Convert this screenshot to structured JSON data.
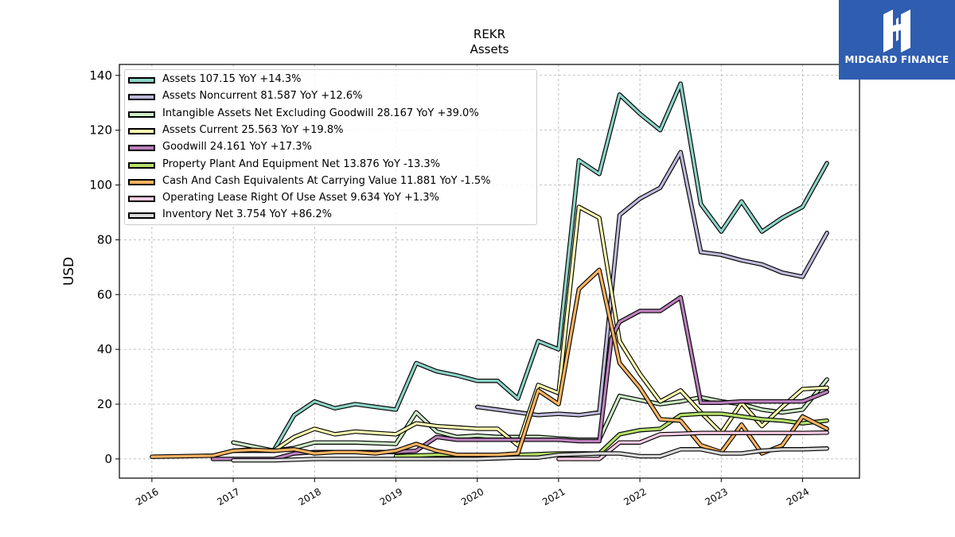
{
  "logo": {
    "text": "MIDGARD FINANCE",
    "color": "#2f5db0"
  },
  "chart_data": {
    "type": "line",
    "title": "REKR",
    "subtitle": "Assets",
    "xlabel": "",
    "ylabel": "USD",
    "x_range": [
      2015.6,
      2024.7
    ],
    "ylim": [
      -7,
      144
    ],
    "y_ticks": [
      0,
      20,
      40,
      60,
      80,
      100,
      120,
      140
    ],
    "x_tick_labels": [
      "2016",
      "2017",
      "2018",
      "2019",
      "2020",
      "2021",
      "2022",
      "2023",
      "2024"
    ],
    "grid": true,
    "legend_position": "top-left",
    "series": [
      {
        "name": "Assets  107.15 YoY +14.3%",
        "color": "#8dd3c7",
        "x": [
          2017.0,
          2017.25,
          2017.5,
          2017.75,
          2018.0,
          2018.25,
          2018.5,
          2018.75,
          2019.0,
          2019.25,
          2019.5,
          2019.75,
          2020.0,
          2020.25,
          2020.5,
          2020.75,
          2021.0,
          2021.25,
          2021.5,
          2021.75,
          2022.0,
          2022.25,
          2022.5,
          2022.75,
          2023.0,
          2023.25,
          2023.5,
          2023.75,
          2024.0,
          2024.3
        ],
        "y": [
          3,
          3.5,
          3.2,
          16,
          21,
          18.5,
          20,
          19,
          18,
          35,
          32,
          30.5,
          28.5,
          28.5,
          22,
          43,
          40,
          109,
          104,
          133,
          126,
          120,
          137,
          93,
          83,
          94,
          83,
          88,
          92,
          108
        ]
      },
      {
        "name": "Assets Noncurrent  81.587 YoY +12.6%",
        "color": "#bebada",
        "x": [
          2020.0,
          2020.25,
          2020.5,
          2020.75,
          2021.0,
          2021.25,
          2021.5,
          2021.75,
          2022.0,
          2022.25,
          2022.5,
          2022.75,
          2023.0,
          2023.25,
          2023.5,
          2023.75,
          2024.0,
          2024.3
        ],
        "y": [
          19,
          18,
          17,
          16,
          16.5,
          16,
          17,
          89,
          95,
          99,
          112,
          75.5,
          74.5,
          72.5,
          71,
          68,
          66.5,
          82.5
        ]
      },
      {
        "name": "Intangible Assets Net Excluding Goodwill  28.167 YoY +39.0%",
        "color": "#ccebc5",
        "x": [
          2017.0,
          2017.5,
          2017.75,
          2018.0,
          2018.5,
          2019.0,
          2019.25,
          2019.5,
          2019.75,
          2020.0,
          2020.25,
          2020.5,
          2020.75,
          2021.0,
          2021.25,
          2021.5,
          2021.75,
          2022.0,
          2022.25,
          2022.5,
          2022.75,
          2023.0,
          2023.25,
          2023.5,
          2023.75,
          2024.0,
          2024.3
        ],
        "y": [
          6,
          3,
          4,
          6,
          6,
          5.5,
          17,
          10,
          8,
          8.5,
          8,
          8,
          8,
          7.5,
          7,
          7,
          23,
          21.5,
          20,
          21,
          22.5,
          21,
          20,
          18,
          17,
          18,
          29
        ]
      },
      {
        "name": "Assets Current  25.563 YoY +19.8%",
        "color": "#ffffb3",
        "x": [
          2017.0,
          2017.25,
          2017.5,
          2017.75,
          2018.0,
          2018.25,
          2018.5,
          2018.75,
          2019.0,
          2019.25,
          2019.5,
          2019.75,
          2020.0,
          2020.25,
          2020.5,
          2020.75,
          2021.0,
          2021.25,
          2021.5,
          2021.75,
          2022.0,
          2022.25,
          2022.5,
          2022.75,
          2023.0,
          2023.25,
          2023.5,
          2023.75,
          2024.0,
          2024.3
        ],
        "y": [
          3,
          3,
          3,
          8,
          11,
          9,
          10,
          9.5,
          9,
          13,
          12,
          11.5,
          11,
          11,
          5,
          27,
          24,
          92,
          88,
          43,
          31,
          21,
          25,
          17,
          9.5,
          20.5,
          12,
          19,
          25.5,
          26
        ]
      },
      {
        "name": "Goodwill  24.161 YoY +17.3%",
        "color": "#bc80bd",
        "x": [
          2016.75,
          2017.0,
          2017.5,
          2017.75,
          2018.0,
          2018.5,
          2019.0,
          2019.25,
          2019.5,
          2019.75,
          2020.0,
          2020.25,
          2020.5,
          2020.75,
          2021.0,
          2021.25,
          2021.5,
          2021.65,
          2021.75,
          2022.0,
          2022.25,
          2022.5,
          2022.75,
          2023.0,
          2023.25,
          2023.5,
          2023.75,
          2024.0,
          2024.3
        ],
        "y": [
          0,
          0,
          0,
          2,
          2.5,
          2.5,
          2.5,
          3,
          8,
          7,
          7,
          7,
          7,
          7,
          7,
          6.5,
          6.5,
          44,
          50,
          54,
          54,
          59,
          20.5,
          20.5,
          21,
          21,
          21,
          21,
          24.5
        ]
      },
      {
        "name": "Property Plant And Equipment Net  13.876 YoY -13.3%",
        "color": "#b3de69",
        "x": [
          2019.0,
          2019.5,
          2020.0,
          2020.5,
          2021.0,
          2021.5,
          2021.75,
          2022.0,
          2022.25,
          2022.5,
          2022.75,
          2023.0,
          2023.25,
          2023.5,
          2023.75,
          2024.0,
          2024.3
        ],
        "y": [
          1,
          1.5,
          1.5,
          1.5,
          2,
          2,
          9,
          10.5,
          11,
          16,
          16.5,
          16.5,
          15.5,
          14.5,
          14,
          13,
          14
        ]
      },
      {
        "name": "Cash And Cash Equivalents At Carrying Value  11.881 YoY -1.5%",
        "color": "#fdb462",
        "x": [
          2016.0,
          2016.75,
          2017.0,
          2017.25,
          2017.5,
          2017.75,
          2018.0,
          2018.25,
          2018.5,
          2018.75,
          2019.0,
          2019.25,
          2019.5,
          2019.75,
          2020.0,
          2020.25,
          2020.5,
          2020.75,
          2021.0,
          2021.25,
          2021.5,
          2021.75,
          2022.0,
          2022.25,
          2022.5,
          2022.75,
          2023.0,
          2023.25,
          2023.5,
          2023.75,
          2024.0,
          2024.3
        ],
        "y": [
          0.8,
          1.2,
          3,
          3.3,
          3,
          3.5,
          2,
          2.5,
          2.5,
          2,
          3,
          5.5,
          3,
          1.5,
          1.5,
          1.5,
          2,
          25,
          20,
          62,
          69,
          35,
          26,
          14.5,
          14,
          5,
          2.5,
          12.5,
          2,
          5,
          15.5,
          11
        ]
      },
      {
        "name": "Operating Lease Right Of Use Asset  9.634 YoY +1.3%",
        "color": "#fccde5",
        "x": [
          2021.0,
          2021.5,
          2021.75,
          2022.0,
          2022.25,
          2022.5,
          2022.75,
          2023.0,
          2023.25,
          2023.5,
          2023.75,
          2024.0,
          2024.3
        ],
        "y": [
          0,
          0,
          6,
          6,
          9,
          9.2,
          9.5,
          9.5,
          9.5,
          9.5,
          9.5,
          9.5,
          9.6
        ]
      },
      {
        "name": "Inventory Net  3.754 YoY +86.2%",
        "color": "#d9d9d9",
        "x": [
          2017.0,
          2017.5,
          2018.0,
          2018.5,
          2019.0,
          2019.5,
          2020.0,
          2020.5,
          2020.75,
          2021.0,
          2021.5,
          2021.75,
          2022.0,
          2022.25,
          2022.5,
          2022.75,
          2023.0,
          2023.25,
          2023.5,
          2023.75,
          2024.0,
          2024.3
        ],
        "y": [
          -0.5,
          -0.5,
          0,
          0,
          0,
          0,
          0,
          0.5,
          0.5,
          1.5,
          2,
          2,
          1,
          1,
          3.5,
          3.5,
          2,
          2,
          3,
          3.5,
          3.5,
          3.8
        ]
      }
    ]
  }
}
